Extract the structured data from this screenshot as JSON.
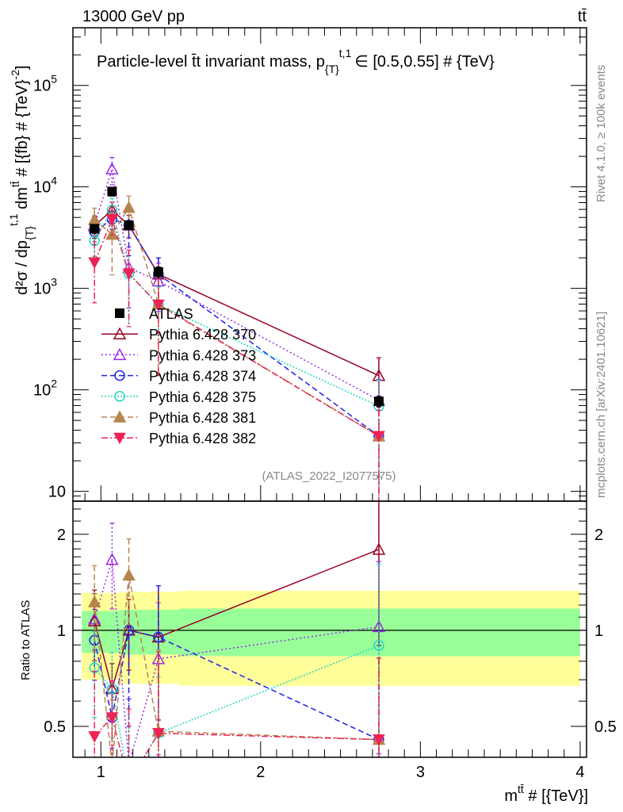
{
  "header": {
    "energy": "13000 GeV pp",
    "process": "tt̄"
  },
  "side_text": {
    "rivet": "Rivet 4.1.0, ≥ 100k events",
    "mcplots": "mcplots.cern.ch [arXiv:2401.10621]"
  },
  "analysis_id": "(ATLAS_2022_I2077575)",
  "chart_data": [
    {
      "type": "scatter",
      "panel": "main",
      "title": {
        "a": "Particle-level t̄t invariant mass, p",
        "sub": "{T}",
        "sup": "t,1",
        "b": "∈ [0.5,0.55] # {TeV}"
      },
      "ylabel": {
        "a": "d²σ / dp",
        "sub": "{T}",
        "sup": "t,1",
        "b": " dm",
        "sup2": "tt̄",
        "c": " # [{fb} # {TeV}",
        "sup3": "-2",
        "d": "]"
      },
      "yscale": "log",
      "ylim": [
        8,
        370000
      ],
      "xlim": [
        0.825,
        4.04
      ],
      "yticks": [
        {
          "v": 10,
          "base": "10",
          "exp": ""
        },
        {
          "v": 100,
          "base": "10",
          "exp": "2"
        },
        {
          "v": 1000,
          "base": "10",
          "exp": "3"
        },
        {
          "v": 10000,
          "base": "10",
          "exp": "4"
        },
        {
          "v": 100000,
          "base": "10",
          "exp": "5"
        }
      ],
      "x": [
        0.96,
        1.07,
        1.175,
        1.36,
        2.74
      ],
      "series": [
        {
          "name": "ATLAS",
          "color": "#000000",
          "marker": "square",
          "dash": "",
          "values": [
            3870,
            9000,
            4200,
            1450,
            77
          ],
          "rel_err": [
            0.1,
            0.1,
            0.1,
            0.12,
            0.12
          ]
        },
        {
          "name": "Pythia 6.428 370",
          "color": "#990022",
          "marker": "tri-up-open",
          "dash": "",
          "values": [
            4140,
            5900,
            4200,
            1380,
            138
          ],
          "rel_err": [
            0.25,
            0.2,
            0.25,
            0.45,
            0.5
          ]
        },
        {
          "name": "Pythia 6.428 373",
          "color": "#9a2be2",
          "marker": "tri-up-open",
          "dash": "2,3",
          "values": [
            4200,
            15000,
            1600,
            1180,
            79
          ],
          "rel_err": [
            0.2,
            0.3,
            0.6,
            0.5,
            0.6
          ]
        },
        {
          "name": "Pythia 6.428 374",
          "color": "#2020e6",
          "marker": "circle-open",
          "dash": "7,4",
          "values": [
            3600,
            4800,
            4200,
            1380,
            35
          ],
          "rel_err": [
            0.25,
            0.2,
            0.5,
            0.45,
            0.8
          ]
        },
        {
          "name": "Pythia 6.428 375",
          "color": "#20d8c0",
          "marker": "circle-open",
          "dash": "2,2",
          "values": [
            2950,
            5900,
            1400,
            690,
            69
          ],
          "rel_err": [
            0.3,
            0.3,
            0.7,
            0.5,
            0.8
          ]
        },
        {
          "name": "Pythia 6.428 381",
          "color": "#b5854f",
          "marker": "tri-up",
          "dash": "7,4",
          "values": [
            4750,
            3400,
            6250,
            700,
            35
          ],
          "rel_err": [
            0.3,
            0.6,
            0.3,
            0.8,
            0.8
          ]
        },
        {
          "name": "Pythia 6.428 382",
          "color": "#ee2255",
          "marker": "tri-down",
          "dash": "8,3,2,3",
          "values": [
            1800,
            4800,
            1400,
            690,
            35
          ],
          "rel_err": [
            0.6,
            0.3,
            0.7,
            0.8,
            0.8
          ]
        }
      ]
    },
    {
      "type": "scatter",
      "panel": "ratio",
      "ylabel": "Ratio to ATLAS",
      "yscale": "log",
      "ylim": [
        0.4,
        2.54
      ],
      "yticks": [
        {
          "v": 0.5,
          "label": "0.5"
        },
        {
          "v": 1,
          "label": "1"
        },
        {
          "v": 2,
          "label": "2"
        }
      ],
      "xlabel": {
        "a": "m",
        "sup": "tt̄",
        "b": " # [{TeV}]"
      },
      "xticks": [
        {
          "v": 1,
          "label": "1"
        },
        {
          "v": 2,
          "label": "2"
        },
        {
          "v": 3,
          "label": "3"
        },
        {
          "v": 4,
          "label": "4"
        }
      ],
      "bin_edges": [
        0.88,
        1.04,
        1.12,
        1.23,
        1.49,
        4.0
      ],
      "band_inner": {
        "color": "#99ff99",
        "lo": [
          0.85,
          0.85,
          0.84,
          0.84,
          0.83
        ],
        "hi": [
          1.15,
          1.15,
          1.16,
          1.16,
          1.17
        ]
      },
      "band_outer": {
        "color": "#ffff99",
        "lo": [
          0.7,
          0.7,
          0.68,
          0.68,
          0.67
        ],
        "hi": [
          1.31,
          1.31,
          1.32,
          1.32,
          1.33
        ]
      }
    }
  ]
}
